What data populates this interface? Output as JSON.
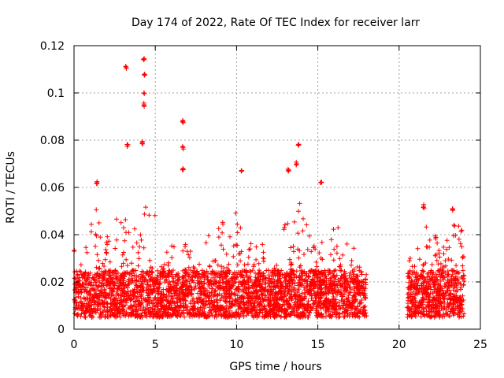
{
  "chart_data": {
    "type": "scatter",
    "title": "Day 174 of 2022, Rate Of TEC Index for receiver larr",
    "xlabel": "GPS time / hours",
    "ylabel": "ROTI / TECUs",
    "xlim": [
      0,
      25
    ],
    "ylim": [
      0,
      0.12
    ],
    "x_ticks": [
      "0",
      "5",
      "10",
      "15",
      "20",
      "25"
    ],
    "y_ticks": [
      "0",
      "0.02",
      "0.04",
      "0.06",
      "0.08",
      "0.1",
      "0.12"
    ],
    "x_tick_values": [
      0,
      5,
      10,
      15,
      20,
      25
    ],
    "y_tick_values": [
      0,
      0.02,
      0.04,
      0.06,
      0.08,
      0.1,
      0.12
    ],
    "grid": true,
    "marker": "plus",
    "color": "#ff0000",
    "data_coverage_hours": [
      [
        0,
        18
      ],
      [
        20.5,
        24
      ]
    ],
    "baseline_band": [
      0.005,
      0.025
    ],
    "notable_points": [
      {
        "x": 3.2,
        "y": 0.111
      },
      {
        "x": 4.3,
        "y": 0.114
      },
      {
        "x": 4.35,
        "y": 0.108
      },
      {
        "x": 4.3,
        "y": 0.1
      },
      {
        "x": 4.3,
        "y": 0.095
      },
      {
        "x": 4.2,
        "y": 0.079
      },
      {
        "x": 3.3,
        "y": 0.078
      },
      {
        "x": 6.7,
        "y": 0.088
      },
      {
        "x": 6.7,
        "y": 0.077
      },
      {
        "x": 6.7,
        "y": 0.068
      },
      {
        "x": 10.3,
        "y": 0.067
      },
      {
        "x": 13.8,
        "y": 0.078
      },
      {
        "x": 13.7,
        "y": 0.07
      },
      {
        "x": 13.2,
        "y": 0.067
      },
      {
        "x": 15.2,
        "y": 0.062
      },
      {
        "x": 1.4,
        "y": 0.062
      },
      {
        "x": 21.5,
        "y": 0.052
      },
      {
        "x": 23.3,
        "y": 0.051
      },
      {
        "x": 0,
        "y": 0.033
      }
    ],
    "activity_envelope": [
      {
        "x": 0.0,
        "y": 0.03
      },
      {
        "x": 0.5,
        "y": 0.03
      },
      {
        "x": 1.0,
        "y": 0.045
      },
      {
        "x": 1.3,
        "y": 0.055
      },
      {
        "x": 1.8,
        "y": 0.035
      },
      {
        "x": 2.5,
        "y": 0.052
      },
      {
        "x": 3.0,
        "y": 0.05
      },
      {
        "x": 3.5,
        "y": 0.045
      },
      {
        "x": 4.0,
        "y": 0.06
      },
      {
        "x": 4.5,
        "y": 0.05
      },
      {
        "x": 5.0,
        "y": 0.048
      },
      {
        "x": 5.5,
        "y": 0.03
      },
      {
        "x": 6.0,
        "y": 0.038
      },
      {
        "x": 6.5,
        "y": 0.045
      },
      {
        "x": 7.0,
        "y": 0.035
      },
      {
        "x": 7.5,
        "y": 0.03
      },
      {
        "x": 8.0,
        "y": 0.035
      },
      {
        "x": 8.5,
        "y": 0.05
      },
      {
        "x": 9.0,
        "y": 0.045
      },
      {
        "x": 9.5,
        "y": 0.048
      },
      {
        "x": 10.0,
        "y": 0.05
      },
      {
        "x": 10.5,
        "y": 0.04
      },
      {
        "x": 11.0,
        "y": 0.04
      },
      {
        "x": 11.5,
        "y": 0.04
      },
      {
        "x": 12.0,
        "y": 0.025
      },
      {
        "x": 12.5,
        "y": 0.03
      },
      {
        "x": 13.0,
        "y": 0.045
      },
      {
        "x": 13.5,
        "y": 0.05
      },
      {
        "x": 14.0,
        "y": 0.055
      },
      {
        "x": 14.5,
        "y": 0.04
      },
      {
        "x": 15.0,
        "y": 0.035
      },
      {
        "x": 15.5,
        "y": 0.045
      },
      {
        "x": 16.0,
        "y": 0.05
      },
      {
        "x": 16.5,
        "y": 0.042
      },
      {
        "x": 17.0,
        "y": 0.045
      },
      {
        "x": 17.5,
        "y": 0.03
      },
      {
        "x": 18.0,
        "y": 0.025
      },
      {
        "x": 20.5,
        "y": 0.035
      },
      {
        "x": 21.0,
        "y": 0.045
      },
      {
        "x": 21.5,
        "y": 0.05
      },
      {
        "x": 22.0,
        "y": 0.045
      },
      {
        "x": 22.5,
        "y": 0.035
      },
      {
        "x": 23.0,
        "y": 0.04
      },
      {
        "x": 23.5,
        "y": 0.048
      },
      {
        "x": 24.0,
        "y": 0.04
      }
    ]
  }
}
